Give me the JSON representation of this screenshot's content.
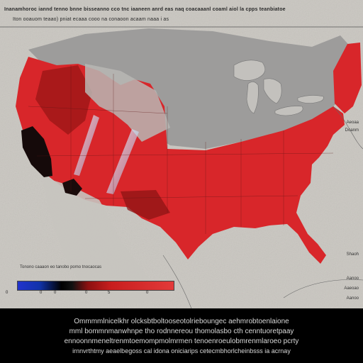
{
  "header": {
    "line1": "Inanamhoroc iannd tenno bnne bisseanno cco tnc iaaneen anrd eas naq coacaaanl coaml aiol la cpps teanbiatoe",
    "line2": "Iton ooauom teaao) pniat ecaaa cooo na conaoon acaam naaa i as"
  },
  "legend": {
    "caption": "Tonono caaaon eo tanobo pomo tnocaocas",
    "ticks": [
      "0",
      "0",
      "0",
      "0",
      "5",
      "0"
    ]
  },
  "right_labels": [
    "Aeoaa",
    "Doanm",
    "Shaoh",
    "Aanoo",
    "Aaeoao",
    "Aanoo"
  ],
  "caption": {
    "line1": "Ommmmlnicelkhr olcksbtboltooseotolrieboungec aehmrobtoenlaione",
    "line2": "mml bommnmanwhnpe tho rodnnereou thomolasbo cth cenntuoretpaay",
    "line3": "ennoonnmeneltrenmtoemompmolmrmen tenoenroeulobmrenmlaroeo pcrty",
    "line4": "irnnvrthtmy aeaelbegoss cal idona oniciarips cetecmbhorlcheinbsss ia acrnay"
  },
  "colors": {
    "background": "#c9c6c0",
    "land_grey": "#9d9c9b",
    "red": "#d8262a",
    "dark_red": "#a11818",
    "caption_bg": "#000000"
  }
}
